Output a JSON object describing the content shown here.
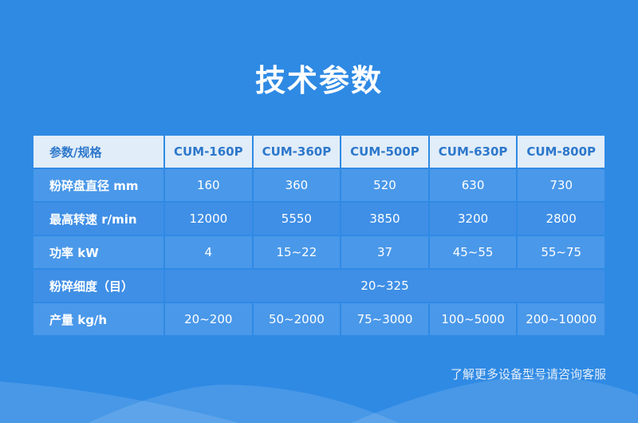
{
  "title": "技术参数",
  "table": {
    "headers": [
      "参数/规格",
      "CUM-160P",
      "CUM-360P",
      "CUM-500P",
      "CUM-630P",
      "CUM-800P"
    ],
    "rows": [
      {
        "label": "粉碎盘直径 mm",
        "values": [
          "160",
          "360",
          "520",
          "630",
          "730"
        ]
      },
      {
        "label": "最高转速 r/min",
        "values": [
          "12000",
          "5550",
          "3850",
          "3200",
          "2800"
        ]
      },
      {
        "label": "功率 kW",
        "values": [
          "4",
          "15~22",
          "37",
          "45~55",
          "55~75"
        ]
      },
      {
        "label": "粉碎细度（目）",
        "merged_value": "20~325"
      },
      {
        "label": "产量 kg/h",
        "values": [
          "20~200",
          "50~2000",
          "75~3000",
          "100~5000",
          "200~10000"
        ]
      }
    ]
  },
  "footer_note": "了解更多设备型号请咨询客服",
  "colors": {
    "background": "#2f8ae4",
    "header_bg": "#e1edf8",
    "header_text": "#2d78cc"
  }
}
